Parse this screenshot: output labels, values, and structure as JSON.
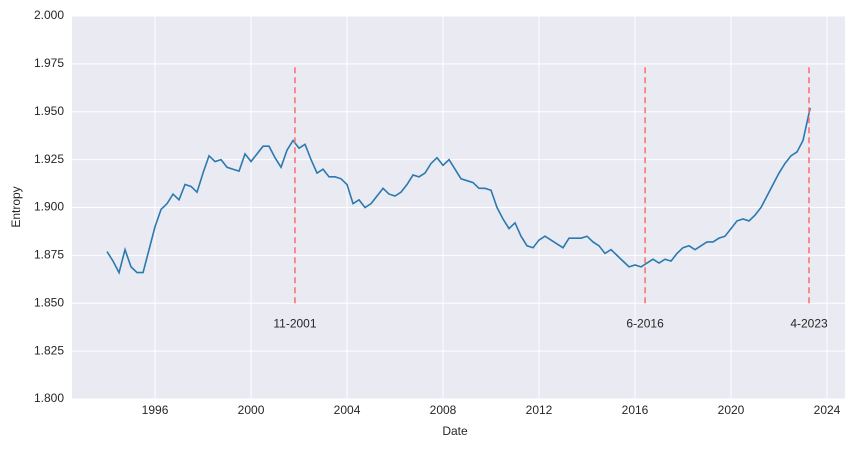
{
  "chart_data": {
    "type": "line",
    "xlabel": "Date",
    "ylabel": "Entropy",
    "x": [
      1994.0,
      1994.25,
      1994.5,
      1994.75,
      1995.0,
      1995.25,
      1995.5,
      1995.75,
      1996.0,
      1996.25,
      1996.5,
      1996.75,
      1997.0,
      1997.25,
      1997.5,
      1997.75,
      1998.0,
      1998.25,
      1998.5,
      1998.75,
      1999.0,
      1999.25,
      1999.5,
      1999.75,
      2000.0,
      2000.25,
      2000.5,
      2000.75,
      2001.0,
      2001.25,
      2001.5,
      2001.75,
      2002.0,
      2002.25,
      2002.5,
      2002.75,
      2003.0,
      2003.25,
      2003.5,
      2003.75,
      2004.0,
      2004.25,
      2004.5,
      2004.75,
      2005.0,
      2005.25,
      2005.5,
      2005.75,
      2006.0,
      2006.25,
      2006.5,
      2006.75,
      2007.0,
      2007.25,
      2007.5,
      2007.75,
      2008.0,
      2008.25,
      2008.5,
      2008.75,
      2009.0,
      2009.25,
      2009.5,
      2009.75,
      2010.0,
      2010.25,
      2010.5,
      2010.75,
      2011.0,
      2011.25,
      2011.5,
      2011.75,
      2012.0,
      2012.25,
      2012.5,
      2012.75,
      2013.0,
      2013.25,
      2013.5,
      2013.75,
      2014.0,
      2014.25,
      2014.5,
      2014.75,
      2015.0,
      2015.25,
      2015.5,
      2015.75,
      2016.0,
      2016.25,
      2016.5,
      2016.75,
      2017.0,
      2017.25,
      2017.5,
      2017.75,
      2018.0,
      2018.25,
      2018.5,
      2018.75,
      2019.0,
      2019.25,
      2019.5,
      2019.75,
      2020.0,
      2020.25,
      2020.5,
      2020.75,
      2021.0,
      2021.25,
      2021.5,
      2021.75,
      2022.0,
      2022.25,
      2022.5,
      2022.75,
      2023.0,
      2023.3
    ],
    "series": [
      {
        "color": "#2a7ab0",
        "values": [
          1.877,
          1.872,
          1.866,
          1.878,
          1.869,
          1.866,
          1.866,
          1.878,
          1.89,
          1.899,
          1.902,
          1.907,
          1.904,
          1.912,
          1.911,
          1.908,
          1.918,
          1.927,
          1.924,
          1.925,
          1.921,
          1.92,
          1.919,
          1.928,
          1.924,
          1.928,
          1.932,
          1.932,
          1.926,
          1.921,
          1.93,
          1.935,
          1.931,
          1.933,
          1.925,
          1.918,
          1.92,
          1.916,
          1.916,
          1.915,
          1.912,
          1.902,
          1.904,
          1.9,
          1.902,
          1.906,
          1.91,
          1.907,
          1.906,
          1.908,
          1.912,
          1.917,
          1.916,
          1.918,
          1.923,
          1.926,
          1.922,
          1.925,
          1.92,
          1.915,
          1.914,
          1.913,
          1.91,
          1.91,
          1.909,
          1.9,
          1.894,
          1.889,
          1.892,
          1.885,
          1.88,
          1.879,
          1.883,
          1.885,
          1.883,
          1.881,
          1.879,
          1.884,
          1.884,
          1.884,
          1.885,
          1.882,
          1.88,
          1.876,
          1.878,
          1.875,
          1.872,
          1.869,
          1.87,
          1.869,
          1.871,
          1.873,
          1.871,
          1.873,
          1.872,
          1.876,
          1.879,
          1.88,
          1.878,
          1.88,
          1.882,
          1.882,
          1.884,
          1.885,
          1.889,
          1.893,
          1.894,
          1.893,
          1.896,
          1.9,
          1.906,
          1.912,
          1.918,
          1.923,
          1.927,
          1.929,
          1.935,
          1.952
        ]
      }
    ],
    "xlim": [
      1992.54,
      2024.75
    ],
    "xticks": [
      1996,
      2000,
      2004,
      2008,
      2012,
      2016,
      2020,
      2024
    ],
    "ylim": [
      1.8,
      2.0
    ],
    "yticks": [
      {
        "value": 1.8,
        "label": "1.800"
      },
      1.825,
      {
        "value": 1.85,
        "label": "1.850"
      },
      1.875,
      {
        "value": 1.9,
        "label": "1.900"
      },
      1.925,
      {
        "value": 1.95,
        "label": "1.950"
      },
      1.975,
      {
        "value": 2.0,
        "label": "2.000"
      }
    ],
    "grid": true,
    "vlines": {
      "color": "#ff6b6b",
      "ymin": 1.85,
      "ymax": 1.975,
      "items": [
        {
          "x": 2001.83,
          "label": "11-2001"
        },
        {
          "x": 2016.42,
          "label": "6-2016"
        },
        {
          "x": 2023.25,
          "label": "4-2023"
        }
      ]
    }
  }
}
